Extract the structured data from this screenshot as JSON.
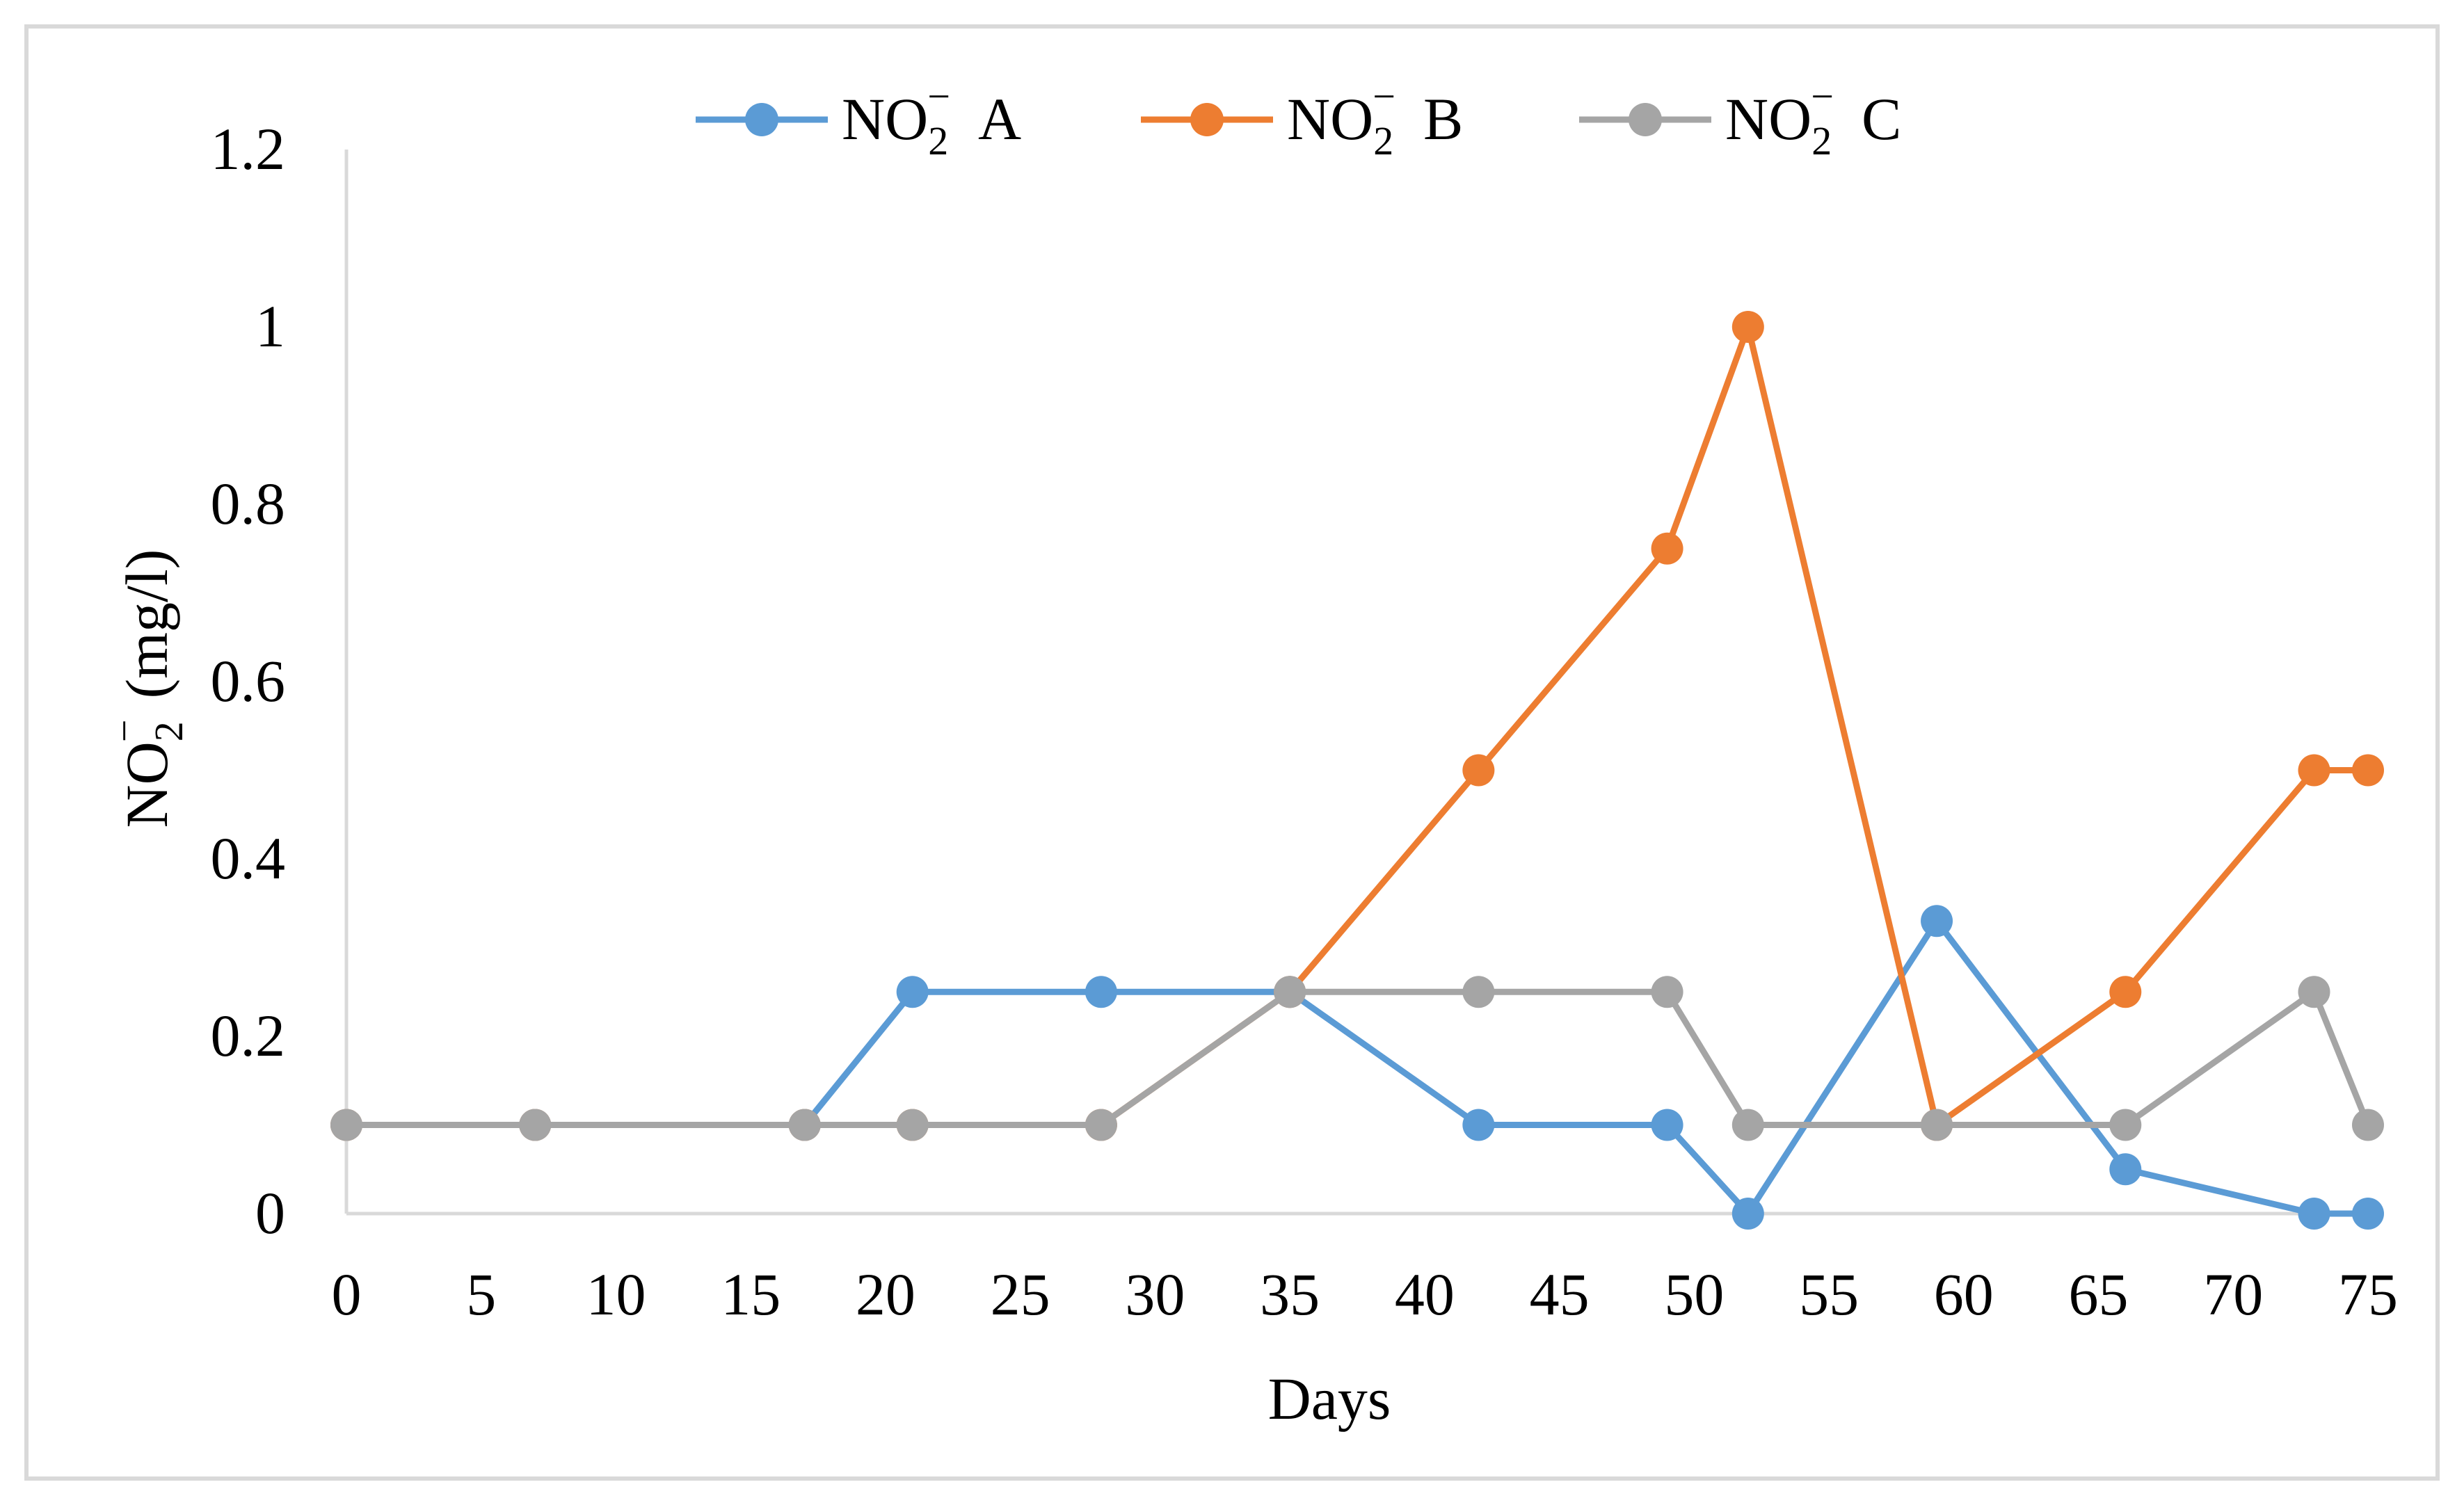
{
  "chart_data": {
    "type": "line",
    "title": "",
    "xlabel": "Days",
    "ylabel": "NO2- (mg/l)",
    "ylabel_parts": {
      "base": "NO",
      "sub": "2",
      "sup": "−",
      "units": "(mg/l)"
    },
    "xlim": [
      0,
      75
    ],
    "ylim": [
      0,
      1.2
    ],
    "x_ticks": [
      0,
      5,
      10,
      15,
      20,
      25,
      30,
      35,
      40,
      45,
      50,
      55,
      60,
      65,
      70,
      75
    ],
    "x_tick_labels": [
      "0",
      "5",
      "10",
      "15",
      "20",
      "25",
      "30",
      "35",
      "40",
      "45",
      "50",
      "55",
      "60",
      "65",
      "70",
      "75"
    ],
    "y_ticks": [
      0,
      0.2,
      0.4,
      0.6,
      0.8,
      1.0,
      1.2
    ],
    "y_tick_labels": [
      "0",
      "0.2",
      "0.4",
      "0.6",
      "0.8",
      "1",
      "1.2"
    ],
    "grid": false,
    "legend_position": "top-center",
    "x": [
      0,
      7,
      17,
      21,
      28,
      35,
      42,
      49,
      52,
      59,
      66,
      73,
      75
    ],
    "series": [
      {
        "name": "NO2- A",
        "label_base": "NO",
        "label_sub": "2",
        "label_sup": "−",
        "label_suffix": "A",
        "color": "#5B9BD5",
        "values": [
          0.1,
          0.1,
          0.1,
          0.25,
          0.25,
          0.25,
          0.1,
          0.1,
          0.0,
          0.33,
          0.05,
          0.0,
          0.0
        ]
      },
      {
        "name": "NO2- B",
        "label_base": "NO",
        "label_sub": "2",
        "label_sup": "−",
        "label_suffix": "B",
        "color": "#ED7D31",
        "values": [
          0.1,
          0.1,
          0.1,
          0.1,
          0.1,
          0.25,
          0.5,
          0.75,
          1.0,
          0.1,
          0.25,
          0.5,
          0.5
        ]
      },
      {
        "name": "NO2- C",
        "label_base": "NO",
        "label_sub": "2",
        "label_sup": "−",
        "label_suffix": "C",
        "color": "#A5A5A5",
        "values": [
          0.1,
          0.1,
          0.1,
          0.1,
          0.1,
          0.25,
          0.25,
          0.25,
          0.1,
          0.1,
          0.1,
          0.25,
          0.1
        ]
      }
    ]
  },
  "colors": {
    "axis": "#D9D9D9",
    "frame": "#D9D9D9",
    "text": "#000000"
  }
}
